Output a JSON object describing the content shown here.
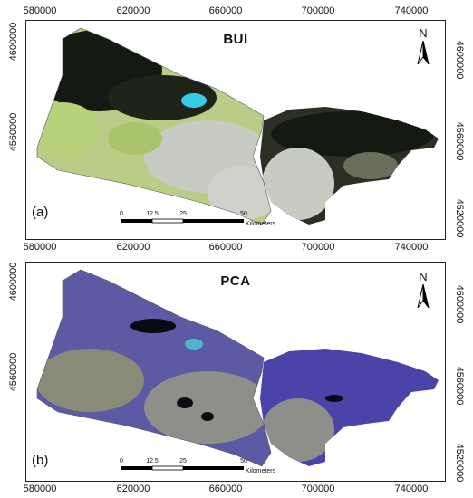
{
  "panels": [
    {
      "title": "BUI",
      "label": "(a)",
      "north_letter": "N",
      "colors": {
        "land": "#3a3b2a",
        "forest": "#141a12",
        "urban": "#c8cbc2",
        "veg": "#b7d27a",
        "water": "#37c9e8"
      }
    },
    {
      "title": "PCA",
      "label": "(b)",
      "north_letter": "N",
      "colors": {
        "land": "#5d5aa5",
        "forest": "#4b44a8",
        "urban": "#8e8f8a",
        "veg": "#8a8a78",
        "water": "#0a0a12"
      }
    }
  ],
  "axes": {
    "x_ticks": [
      "580000",
      "620000",
      "660000",
      "700000",
      "740000"
    ],
    "y_ticks_left": [
      "4600000",
      "4560000",
      "4520000"
    ],
    "y_ticks_right": [
      "4600000",
      "4560000",
      "4520000"
    ]
  },
  "scalebar": {
    "labels": [
      "0",
      "12.5",
      "25",
      "50"
    ],
    "unit": "Kilometers"
  }
}
